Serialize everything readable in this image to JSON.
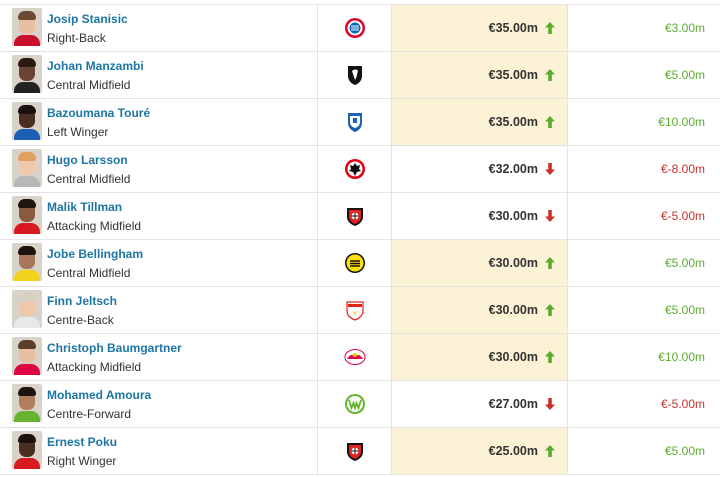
{
  "rows": [
    {
      "name": "Josip Stanisic",
      "position": "Right-Back",
      "club_icon": "bayern-munich-crest-icon",
      "value": "€35.00m",
      "trend": "up",
      "diff": "€3.00m",
      "skin": "#e8bfa0",
      "hair": "#6b4a33",
      "shirt": "#c8102e"
    },
    {
      "name": "Johan Manzambi",
      "position": "Central Midfield",
      "club_icon": "sc-freiburg-crest-icon",
      "value": "€35.00m",
      "trend": "up",
      "diff": "€5.00m",
      "skin": "#6b4532",
      "hair": "#2a1a12",
      "shirt": "#222222"
    },
    {
      "name": "Bazoumana Touré",
      "position": "Left Winger",
      "club_icon": "hoffenheim-crest-icon",
      "value": "€35.00m",
      "trend": "up",
      "diff": "€10.00m",
      "skin": "#4a2e22",
      "hair": "#1a1010",
      "shirt": "#1a5fb4"
    },
    {
      "name": "Hugo Larsson",
      "position": "Central Midfield",
      "club_icon": "eintracht-frankfurt-crest-icon",
      "value": "€32.00m",
      "trend": "down",
      "diff": "€-8.00m",
      "skin": "#f0c8ac",
      "hair": "#e0a060",
      "shirt": "#b8b8b8"
    },
    {
      "name": "Malik Tillman",
      "position": "Attacking Midfield",
      "club_icon": "bayer-leverkusen-crest-icon",
      "value": "€30.00m",
      "trend": "down",
      "diff": "€-5.00m",
      "skin": "#8a5a3e",
      "hair": "#1f1410",
      "shirt": "#d71920"
    },
    {
      "name": "Jobe Bellingham",
      "position": "Central Midfield",
      "club_icon": "borussia-dortmund-crest-icon",
      "value": "€30.00m",
      "trend": "up",
      "diff": "€5.00m",
      "skin": "#a8765a",
      "hair": "#1c120e",
      "shirt": "#f2d21b"
    },
    {
      "name": "Finn Jeltsch",
      "position": "Centre-Back",
      "club_icon": "vfb-stuttgart-crest-icon",
      "value": "€30.00m",
      "trend": "up",
      "diff": "€5.00m",
      "skin": "#f0c8ac",
      "hair": "#d8d0c0",
      "shirt": "#e8e8e8"
    },
    {
      "name": "Christoph Baumgartner",
      "position": "Attacking Midfield",
      "club_icon": "rb-leipzig-crest-icon",
      "value": "€30.00m",
      "trend": "up",
      "diff": "€10.00m",
      "skin": "#e8bfa0",
      "hair": "#5a3e2a",
      "shirt": "#dd0741"
    },
    {
      "name": "Mohamed Amoura",
      "position": "Centre-Forward",
      "club_icon": "vfl-wolfsburg-crest-icon",
      "value": "€27.00m",
      "trend": "down",
      "diff": "€-5.00m",
      "skin": "#b07e5e",
      "hair": "#1c120e",
      "shirt": "#65b32e"
    },
    {
      "name": "Ernest Poku",
      "position": "Right Winger",
      "club_icon": "bayer-leverkusen-crest-icon",
      "value": "€25.00m",
      "trend": "up",
      "diff": "€5.00m",
      "skin": "#4a2e22",
      "hair": "#1a1010",
      "shirt": "#d71920"
    }
  ],
  "colors": {
    "up": "#5bab2e",
    "down": "#c8312b",
    "highlight": "#fcf3d7",
    "link": "#1d75a3"
  }
}
